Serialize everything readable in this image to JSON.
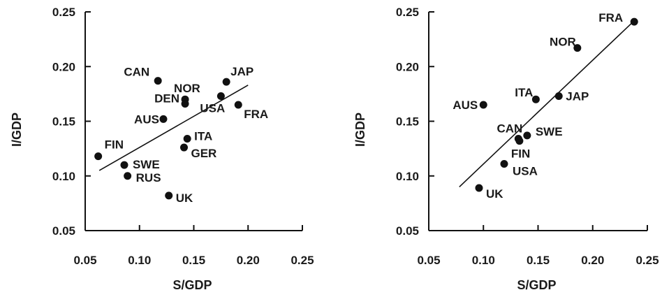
{
  "chart_data": [
    {
      "type": "scatter",
      "xlabel": "S/GDP",
      "ylabel": "I/GDP",
      "xlim": [
        0.05,
        0.25
      ],
      "ylim": [
        0.05,
        0.25
      ],
      "x_ticks": [
        "0.05",
        "0.10",
        "0.15",
        "0.20",
        "0.25"
      ],
      "y_ticks": [
        "0.05",
        "0.10",
        "0.15",
        "0.20",
        "0.25"
      ],
      "points": [
        {
          "label": "CAN",
          "x": 0.117,
          "y": 0.187
        },
        {
          "label": "JAP",
          "x": 0.18,
          "y": 0.186
        },
        {
          "label": "NOR",
          "x": 0.142,
          "y": 0.17
        },
        {
          "label": "DEN",
          "x": 0.142,
          "y": 0.166
        },
        {
          "label": "USA",
          "x": 0.175,
          "y": 0.173
        },
        {
          "label": "FRA",
          "x": 0.191,
          "y": 0.165
        },
        {
          "label": "AUS",
          "x": 0.122,
          "y": 0.152
        },
        {
          "label": "ITA",
          "x": 0.144,
          "y": 0.134
        },
        {
          "label": "GER",
          "x": 0.141,
          "y": 0.126
        },
        {
          "label": "FIN",
          "x": 0.062,
          "y": 0.118
        },
        {
          "label": "SWE",
          "x": 0.086,
          "y": 0.11
        },
        {
          "label": "RUS",
          "x": 0.089,
          "y": 0.1
        },
        {
          "label": "UK",
          "x": 0.127,
          "y": 0.082
        }
      ],
      "trend_line": {
        "x": [
          0.063,
          0.2
        ],
        "y": [
          0.105,
          0.183
        ]
      }
    },
    {
      "type": "scatter",
      "xlabel": "S/GDP",
      "ylabel": "I/GDP",
      "xlim": [
        0.05,
        0.25
      ],
      "ylim": [
        0.05,
        0.25
      ],
      "x_ticks": [
        "0.05",
        "0.10",
        "0.15",
        "0.20",
        "0.25"
      ],
      "y_ticks": [
        "0.05",
        "0.10",
        "0.15",
        "0.20",
        "0.25"
      ],
      "points": [
        {
          "label": "FRA",
          "x": 0.238,
          "y": 0.241
        },
        {
          "label": "NOR",
          "x": 0.186,
          "y": 0.217
        },
        {
          "label": "AUS",
          "x": 0.1,
          "y": 0.165
        },
        {
          "label": "ITA",
          "x": 0.148,
          "y": 0.17
        },
        {
          "label": "JAP",
          "x": 0.169,
          "y": 0.173
        },
        {
          "label": "CAN",
          "x": 0.132,
          "y": 0.134
        },
        {
          "label": "SWE",
          "x": 0.14,
          "y": 0.137
        },
        {
          "label": "FIN",
          "x": 0.133,
          "y": 0.132
        },
        {
          "label": "USA",
          "x": 0.119,
          "y": 0.111
        },
        {
          "label": "UK",
          "x": 0.096,
          "y": 0.089
        }
      ],
      "trend_line": {
        "x": [
          0.078,
          0.236
        ],
        "y": [
          0.09,
          0.24
        ]
      }
    }
  ]
}
